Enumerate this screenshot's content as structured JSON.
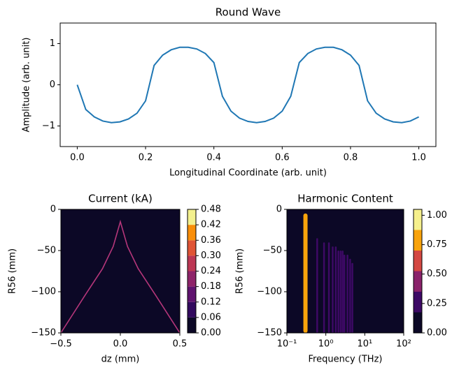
{
  "chart_data": [
    {
      "type": "line",
      "title": "Round Wave",
      "xlabel": "Longitudinal Coordinate (arb. unit)",
      "ylabel": "Amplitude (arb. unit)",
      "x": [
        0,
        0.025,
        0.05,
        0.075,
        0.1,
        0.125,
        0.15,
        0.175,
        0.2,
        0.225,
        0.25,
        0.275,
        0.3,
        0.325,
        0.35,
        0.375,
        0.4,
        0.425,
        0.45,
        0.475,
        0.5,
        0.525,
        0.55,
        0.575,
        0.6,
        0.625,
        0.65,
        0.675,
        0.7,
        0.725,
        0.75,
        0.775,
        0.8,
        0.825,
        0.85,
        0.875,
        0.9,
        0.925,
        0.95,
        0.975,
        1.0
      ],
      "values": [
        0,
        -0.6,
        -0.78,
        -0.88,
        -0.92,
        -0.9,
        -0.83,
        -0.69,
        -0.39,
        0.47,
        0.72,
        0.85,
        0.91,
        0.91,
        0.87,
        0.76,
        0.54,
        -0.28,
        -0.64,
        -0.81,
        -0.89,
        -0.92,
        -0.89,
        -0.81,
        -0.64,
        -0.28,
        0.54,
        0.76,
        0.87,
        0.91,
        0.91,
        0.85,
        0.72,
        0.47,
        -0.39,
        -0.69,
        -0.83,
        -0.9,
        -0.92,
        -0.88,
        -0.78
      ],
      "color": "#1f77b4",
      "xlim": [
        -0.05,
        1.05
      ],
      "ylim": [
        -1.5,
        1.5
      ],
      "xticks": [
        {
          "value": 0,
          "label": "0.0"
        },
        0.2,
        0.4,
        0.6,
        0.8,
        {
          "value": 1,
          "label": "1.0"
        }
      ],
      "yticks": [
        {
          "value": -1,
          "label": "−1"
        },
        0,
        1
      ]
    },
    {
      "type": "contour",
      "marks": "line",
      "title": "Current (kA)",
      "xlabel": "dz (mm)",
      "ylabel": "R56 (mm)",
      "x": [
        -0.5,
        -0.3,
        -0.15,
        -0.06,
        0,
        0.06,
        0.15,
        0.3,
        0.5
      ],
      "values": [
        -150,
        -105,
        -72,
        -45,
        -15,
        -45,
        -72,
        -105,
        -150
      ],
      "color": "#b5367a",
      "xlim": [
        -0.5,
        0.5
      ],
      "ylim": [
        -150,
        0
      ],
      "xticks": [
        {
          "value": -0.5,
          "label": "−0.5"
        },
        {
          "value": 0,
          "label": "0.0"
        },
        0.5
      ],
      "yticks": [
        {
          "value": -150,
          "label": "−150"
        },
        {
          "value": -100,
          "label": "−100"
        },
        {
          "value": -50,
          "label": "−50"
        },
        0
      ],
      "levels": [
        0,
        0.06,
        0.12,
        0.18,
        0.24,
        0.3,
        0.36,
        0.42,
        0.48
      ],
      "colors": [
        "#0c0826",
        "#320a5e",
        "#5f136e",
        "#8e2469",
        "#bc3754",
        "#e05536",
        "#f98e09",
        "#f3f08e"
      ],
      "colorbar_ticks": [
        {
          "value": 0,
          "label": "0.00"
        },
        {
          "value": 0.06,
          "label": "0.06"
        },
        {
          "value": 0.12,
          "label": "0.12"
        },
        {
          "value": 0.18,
          "label": "0.18"
        },
        {
          "value": 0.24,
          "label": "0.24"
        },
        {
          "value": 0.3,
          "label": "0.30"
        },
        {
          "value": 0.36,
          "label": "0.36"
        },
        {
          "value": 0.42,
          "label": "0.42"
        },
        {
          "value": 0.48,
          "label": "0.48"
        }
      ]
    },
    {
      "type": "contour",
      "marks": "stripes",
      "title": "Harmonic Content",
      "xlabel": "Frequency (THz)",
      "ylabel": "R56 (mm)",
      "xscale": "log",
      "x": [
        0.3,
        0.6,
        0.9,
        1.2,
        1.5,
        1.8,
        2.1,
        2.4,
        2.7,
        3.0,
        3.6,
        4.2,
        4.8
      ],
      "values": [
        0.8,
        0.3,
        0.25,
        0.22,
        0.2,
        0.2,
        0.2,
        0.2,
        0.2,
        0.2,
        0.2,
        0.2,
        0.2
      ],
      "y_top": [
        -5,
        -35,
        -40,
        -40,
        -45,
        -45,
        -50,
        -50,
        -50,
        -55,
        -55,
        -60,
        -65
      ],
      "xlim": [
        0.1,
        100
      ],
      "ylim": [
        -150,
        0
      ],
      "xticks": [
        {
          "value": 0.1,
          "label": "10⁻¹"
        },
        {
          "value": 1,
          "label": "10⁰"
        },
        {
          "value": 10,
          "label": "10¹"
        },
        {
          "value": 100,
          "label": "10²"
        }
      ],
      "yticks": [
        {
          "value": -150,
          "label": "−150"
        },
        {
          "value": -100,
          "label": "−100"
        },
        {
          "value": -50,
          "label": "−50"
        },
        0
      ],
      "levels": [
        0,
        0.175,
        0.35,
        0.525,
        0.7,
        0.875,
        1.05
      ],
      "colors": [
        "#0c0826",
        "#3d0965",
        "#8a226a",
        "#d44842",
        "#f9a30b",
        "#f6f08c"
      ],
      "colorbar_ticks": [
        {
          "value": 0,
          "label": "0.00"
        },
        {
          "value": 0.25,
          "label": "0.25"
        },
        {
          "value": 0.5,
          "label": "0.50"
        },
        {
          "value": 0.75,
          "label": "0.75"
        },
        {
          "value": 1,
          "label": "1.00"
        }
      ]
    }
  ]
}
